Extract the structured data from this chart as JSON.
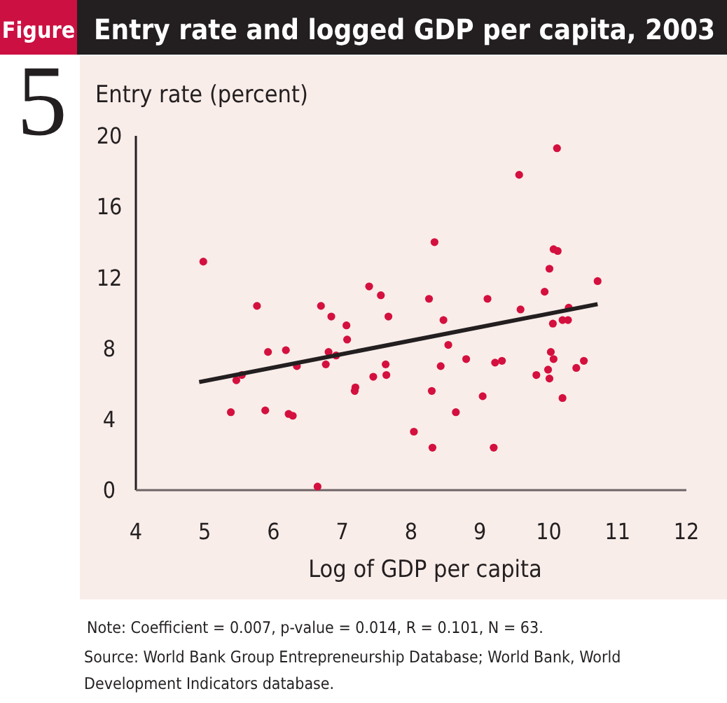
{
  "chart_data": {
    "type": "scatter",
    "title": "Entry rate and logged GDP per capita, 2003",
    "ylabel": "Entry rate (percent)",
    "xlabel": "Log of GDP per capita",
    "annotations": [
      "Figure",
      "5",
      "Note: Coefficient = 0.007, p-value = 0.014, R = 0.101, N = 63.",
      "Source: World Bank Group Entrepreneurship Database; World Bank, World Development Indicators database."
    ],
    "xlim": [
      4,
      12
    ],
    "xticks": [
      4,
      5,
      6,
      7,
      8,
      9,
      10,
      11,
      12
    ],
    "ylim": [
      0,
      20
    ],
    "yticks": [
      0,
      4,
      8,
      12,
      16,
      20
    ],
    "grid": false,
    "marker": "circle",
    "series": [
      {
        "color": "#d4103f",
        "x": [
          4.98,
          5.76,
          6.69,
          6.84,
          7.06,
          7.07,
          7.39,
          7.56,
          7.67,
          5.92,
          6.18,
          6.34,
          6.8,
          6.91,
          6.76,
          5.54,
          5.46,
          5.38,
          5.88,
          6.22,
          6.28,
          6.64,
          7.19,
          7.18,
          7.63,
          7.45,
          7.64,
          8.04,
          10.12,
          9.57,
          8.34,
          10.07,
          10.13,
          10.01,
          10.71,
          9.94,
          8.26,
          9.11,
          9.59,
          10.29,
          8.47,
          10.06,
          10.2,
          10.28,
          8.54,
          8.43,
          8.8,
          9.22,
          9.32,
          10.03,
          10.07,
          9.99,
          9.82,
          10.01,
          10.4,
          10.51,
          8.3,
          9.04,
          10.2,
          8.65,
          8.31,
          9.2
        ],
        "values": [
          12.9,
          10.4,
          10.4,
          9.8,
          9.3,
          8.5,
          11.5,
          11,
          9.8,
          7.8,
          7.9,
          7,
          7.8,
          7.6,
          7.1,
          6.5,
          6.2,
          4.4,
          4.5,
          4.3,
          4.2,
          0.2,
          5.8,
          5.6,
          7.1,
          6.4,
          6.5,
          3.3,
          19.3,
          17.8,
          14,
          13.6,
          13.5,
          12.5,
          11.8,
          11.2,
          10.8,
          10.8,
          10.2,
          10.3,
          9.6,
          9.4,
          9.6,
          9.6,
          8.2,
          7,
          7.4,
          7.2,
          7.3,
          7.8,
          7.4,
          6.8,
          6.5,
          6.3,
          6.9,
          7.3,
          5.6,
          5.3,
          5.2,
          4.4,
          2.4,
          2.4
        ]
      },
      {
        "type": "line",
        "color": "#231f20",
        "marker": "none",
        "x": [
          4.92,
          10.71
        ],
        "values": [
          6.1,
          10.5
        ]
      }
    ]
  }
}
